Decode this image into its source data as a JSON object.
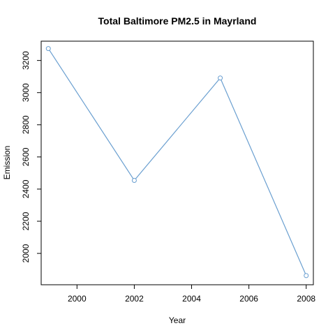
{
  "chart_data": {
    "type": "line",
    "title": "Total Baltimore PM2.5 in Mayrland",
    "xlabel": "Year",
    "ylabel": "Emission",
    "x": [
      1999,
      2002,
      2005,
      2008
    ],
    "series": [
      {
        "values": [
          3274,
          2454,
          3091,
          1862
        ],
        "color": "#6a9fd0",
        "marker": "open-circle"
      }
    ],
    "xticks": [
      2000,
      2002,
      2004,
      2006,
      2008
    ],
    "yticks": [
      2000,
      2200,
      2400,
      2600,
      2800,
      3000,
      3200
    ],
    "xlim": [
      1998.75,
      2008.25
    ],
    "ylim": [
      1805,
      3320
    ],
    "grid": false,
    "legend": "none"
  }
}
